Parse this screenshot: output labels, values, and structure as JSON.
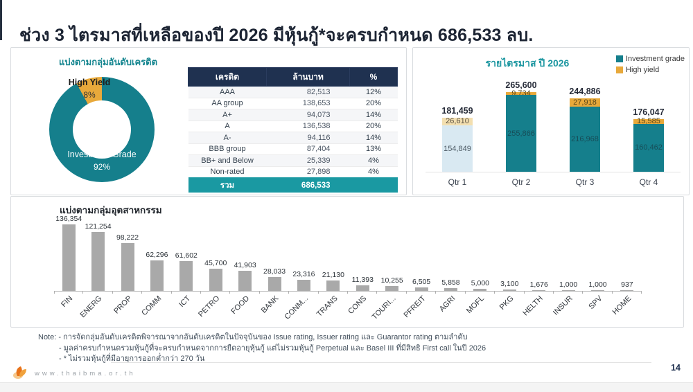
{
  "slide": {
    "title": "ช่วง 3 ไตรมาสที่เหลือของปี 2026 มีหุ้นกู้*จะครบกำหนด 686,533 ลบ.",
    "page_number": "14",
    "website": "www.thaibma.or.th"
  },
  "colors": {
    "teal": "#157F8C",
    "orange": "#E8A93B",
    "navy_header": "#1F3150",
    "total_row_teal": "#1A99A2",
    "industry_bar_gray": "#A9A9A9",
    "faded_teal": "#D9E9F2",
    "faded_orange": "#F3DFB0"
  },
  "credit_panel": {
    "title": "แบ่งตามกลุ่มอันดับเครดิต",
    "donut_labels": {
      "high_yield": "High Yield",
      "high_yield_pct": "8%",
      "investment_grade": "Investment Grade",
      "investment_grade_pct": "92%"
    },
    "table": {
      "headers": [
        "เครดิต",
        "ล้านบาท",
        "%"
      ],
      "rows": [
        [
          "AAA",
          "82,513",
          "12%"
        ],
        [
          "AA group",
          "138,653",
          "20%"
        ],
        [
          "A+",
          "94,073",
          "14%"
        ],
        [
          "A",
          "136,538",
          "20%"
        ],
        [
          "A-",
          "94,116",
          "14%"
        ],
        [
          "BBB group",
          "87,404",
          "13%"
        ],
        [
          "BB+ and Below",
          "25,339",
          "4%"
        ],
        [
          "Non-rated",
          "27,898",
          "4%"
        ]
      ],
      "total_row": [
        "รวม",
        "686,533",
        ""
      ]
    }
  },
  "quarterly_panel": {
    "title": "รายไตรมาส ปี 2026",
    "legend": [
      {
        "label": "Investment grade",
        "color": "#157F8C"
      },
      {
        "label": "High yield",
        "color": "#E8A93B"
      }
    ]
  },
  "industry_panel": {
    "title": "แบ่งตามกลุ่มอุตสาหกรรม"
  },
  "notes": {
    "line1": "Note: - การจัดกลุ่มอันดับเครดิตพิจารณาจากอันดับเครดิตในปัจจุบันของ Issue rating, Issuer rating และ Guarantor rating ตามลำดับ",
    "line2": "- มูลค่าครบกำหนดรวมหุ้นกู้ที่จะครบกำหนดจากการยืดอายุหุ้นกู้ แต่ไม่รวมหุ้นกู้ Perpetual และ Basel III ที่มีสิทธิ First call ในปี 2026",
    "line3": "- * ไม่รวมหุ้นกู้ที่มีอายุการออกต่ำกว่า 270 วัน"
  },
  "chart_data": [
    {
      "type": "pie",
      "donut": true,
      "title": "แบ่งตามกลุ่มอันดับเครดิต",
      "labels": [
        "High Yield",
        "Investment Grade"
      ],
      "values": [
        8,
        92
      ],
      "unit": "%",
      "colors": [
        "#E8A93B",
        "#157F8C"
      ]
    },
    {
      "type": "bar",
      "subtype": "stacked",
      "title": "รายไตรมาส ปี 2026",
      "categories": [
        "Qtr 1",
        "Qtr 2",
        "Qtr 3",
        "Qtr 4"
      ],
      "series": [
        {
          "name": "Investment grade",
          "color": "#157F8C",
          "values": [
            154849,
            255866,
            216968,
            160462
          ]
        },
        {
          "name": "High yield",
          "color": "#E8A93B",
          "values": [
            26610,
            9734,
            27918,
            15585
          ]
        }
      ],
      "totals": [
        181459,
        265600,
        244886,
        176047
      ],
      "unit": "ล้านบาท",
      "legend_position": "top-right",
      "faded_categories": [
        0
      ],
      "ylim": [
        0,
        280000
      ],
      "grid": false
    },
    {
      "type": "bar",
      "title": "แบ่งตามกลุ่มอุตสาหกรรม",
      "categories": [
        "FIN",
        "ENERG",
        "PROP",
        "COMM",
        "ICT",
        "PETRO",
        "FOOD",
        "BANK",
        "CONM...",
        "TRANS",
        "CONS",
        "TOURI...",
        "PFREIT",
        "AGRI",
        "MOFL",
        "PKG",
        "HELTH",
        "INSUR",
        "SPV",
        "HOME"
      ],
      "values": [
        136354,
        121254,
        98222,
        62296,
        61602,
        45700,
        41903,
        28033,
        23316,
        21130,
        11393,
        10255,
        6505,
        5858,
        5000,
        3100,
        1676,
        1000,
        1000,
        937
      ],
      "bar_color": "#A9A9A9",
      "unit": "ล้านบาท",
      "ylim": [
        0,
        140000
      ],
      "grid": false
    }
  ]
}
